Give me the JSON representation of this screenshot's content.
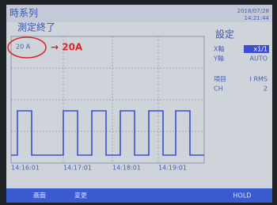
{
  "header": {
    "title": "時系列",
    "status": "測定終了",
    "date": "2018/07/28",
    "time": "14:21:44"
  },
  "graph": {
    "range_label": "20 A",
    "annotation": "→ 20A",
    "time_labels": [
      "14:16:01",
      "14:17:01",
      "14:18:01",
      "14:19:01"
    ]
  },
  "settings": {
    "title": "設定",
    "rows": [
      {
        "label": "X軸",
        "value": "x1/1"
      },
      {
        "label": "Y軸",
        "value": "AUTO"
      },
      {
        "label": "項目",
        "value": "I RMS"
      },
      {
        "label": "CH",
        "value": "2"
      }
    ]
  },
  "footer": {
    "buttons": [
      "画面",
      "変更",
      "HOLD"
    ]
  }
}
